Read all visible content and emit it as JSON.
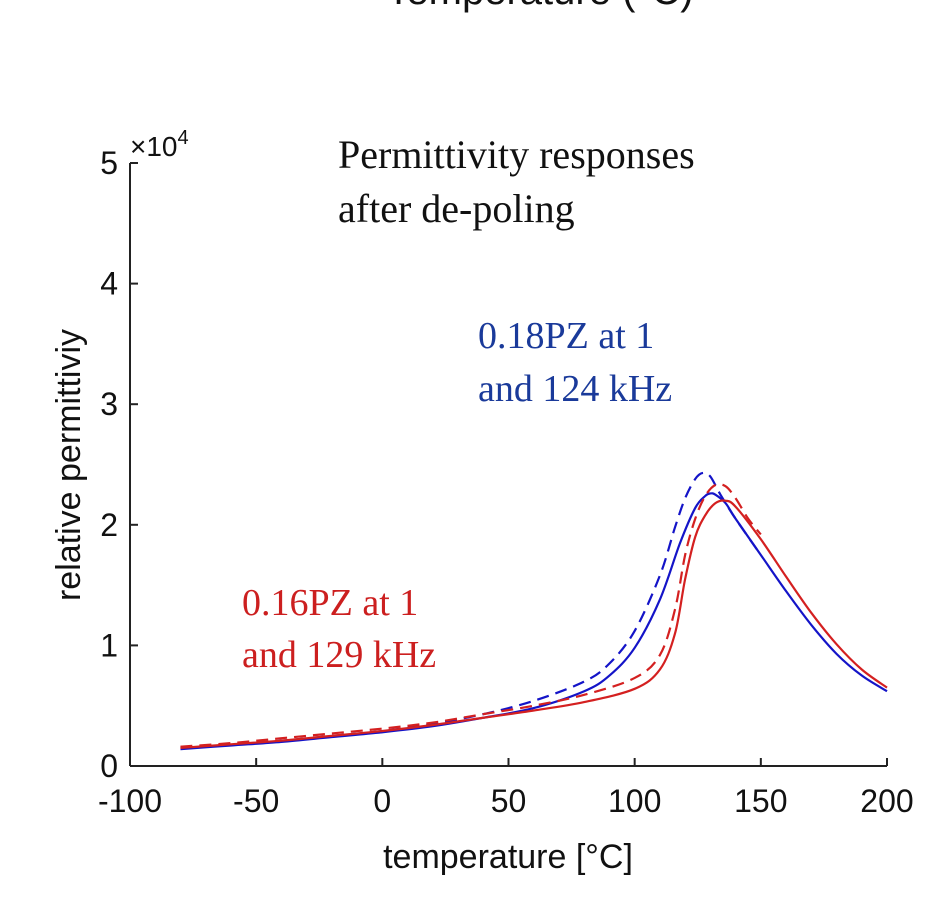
{
  "chart_data": {
    "type": "line",
    "cropped_header": "Temperature (°C)",
    "title_lines": [
      "Permittivity responses",
      "after de-poling"
    ],
    "xlabel": "temperature [°C]",
    "ylabel": "relative permittiviy",
    "xlim": [
      -100,
      200
    ],
    "ylim": [
      0,
      5
    ],
    "xticks": [
      "-100",
      "-50",
      "0",
      "50",
      "100",
      "150",
      "200"
    ],
    "yticks": [
      "0",
      "1",
      "2",
      "3",
      "4",
      "5"
    ],
    "y_multiplier": {
      "base": "×10",
      "exponent": "4"
    },
    "annotations": [
      {
        "lines": [
          "0.18PZ at 1",
          "and 124 kHz"
        ],
        "color": "#1a3a9a"
      },
      {
        "lines": [
          "0.16PZ at 1",
          "and 129 kHz"
        ],
        "color": "#cc1f1f"
      }
    ],
    "series": [
      {
        "name": "0.18PZ 1 kHz",
        "color": "#1414c8",
        "dash": "solid",
        "x": [
          -80,
          -60,
          -40,
          -20,
          0,
          20,
          40,
          60,
          80,
          90,
          100,
          110,
          118,
          124,
          128,
          130,
          132,
          136,
          140,
          150,
          160,
          170,
          180,
          190,
          200
        ],
        "y": [
          0.14,
          0.17,
          0.2,
          0.24,
          0.28,
          0.33,
          0.4,
          0.48,
          0.62,
          0.75,
          0.98,
          1.38,
          1.85,
          2.14,
          2.24,
          2.26,
          2.25,
          2.18,
          2.05,
          1.75,
          1.45,
          1.17,
          0.93,
          0.75,
          0.62
        ]
      },
      {
        "name": "0.18PZ 124 kHz",
        "color": "#1414c8",
        "dash": "dashed",
        "x": [
          -80,
          -60,
          -40,
          -20,
          0,
          20,
          40,
          60,
          80,
          90,
          100,
          110,
          116,
          120,
          124,
          127,
          130,
          134,
          140,
          150
        ],
        "y": [
          0.15,
          0.18,
          0.21,
          0.25,
          0.29,
          0.35,
          0.43,
          0.54,
          0.7,
          0.85,
          1.12,
          1.58,
          1.98,
          2.22,
          2.38,
          2.43,
          2.4,
          2.25,
          2.05,
          1.75
        ]
      },
      {
        "name": "0.16PZ 1 kHz",
        "color": "#d42020",
        "dash": "solid",
        "x": [
          -80,
          -60,
          -40,
          -20,
          0,
          20,
          40,
          60,
          80,
          100,
          110,
          116,
          120,
          124,
          128,
          132,
          136,
          140,
          150,
          160,
          170,
          180,
          190,
          200
        ],
        "y": [
          0.15,
          0.18,
          0.21,
          0.25,
          0.29,
          0.34,
          0.4,
          0.46,
          0.53,
          0.64,
          0.8,
          1.1,
          1.55,
          1.9,
          2.08,
          2.18,
          2.2,
          2.15,
          1.88,
          1.57,
          1.27,
          1.01,
          0.8,
          0.65
        ]
      },
      {
        "name": "0.16PZ 129 kHz",
        "color": "#d42020",
        "dash": "dashed",
        "x": [
          -80,
          -60,
          -40,
          -20,
          0,
          20,
          40,
          60,
          80,
          100,
          110,
          116,
          120,
          124,
          128,
          132,
          136,
          140,
          145,
          150
        ],
        "y": [
          0.16,
          0.19,
          0.23,
          0.27,
          0.31,
          0.36,
          0.43,
          0.5,
          0.59,
          0.73,
          0.92,
          1.3,
          1.75,
          2.05,
          2.24,
          2.33,
          2.32,
          2.22,
          2.05,
          1.92
        ]
      }
    ]
  }
}
